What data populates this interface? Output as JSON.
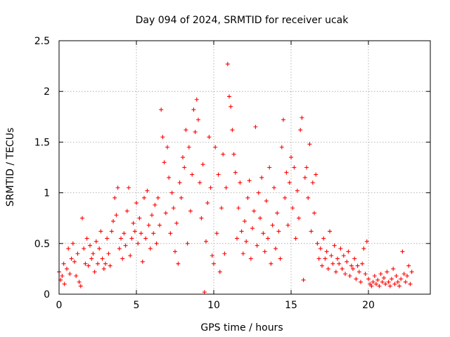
{
  "chart_data": {
    "type": "scatter",
    "title": "Day 094 of 2024, SRMTID for receiver ucak",
    "xlabel": "GPS time / hours",
    "ylabel": "SRMTID / TECUs",
    "xlim": [
      0,
      24
    ],
    "ylim": [
      0,
      2.5
    ],
    "xticks": [
      0,
      5,
      10,
      15,
      20
    ],
    "xtick_labels": [
      "0",
      "5",
      "10",
      "15",
      "20"
    ],
    "yticks": [
      0,
      0.5,
      1,
      1.5,
      2,
      2.5
    ],
    "ytick_labels": [
      "0",
      "0.5",
      "1",
      "1.5",
      "2",
      "2.5"
    ],
    "grid": true,
    "marker": "+",
    "series": [
      {
        "name": "SRMTID",
        "color": "#ff0000",
        "points": [
          [
            0.0,
            0.22
          ],
          [
            0.1,
            0.14
          ],
          [
            0.2,
            0.18
          ],
          [
            0.3,
            0.3
          ],
          [
            0.35,
            0.1
          ],
          [
            0.5,
            0.25
          ],
          [
            0.6,
            0.45
          ],
          [
            0.7,
            0.2
          ],
          [
            0.8,
            0.35
          ],
          [
            0.9,
            0.5
          ],
          [
            1.0,
            0.32
          ],
          [
            1.1,
            0.18
          ],
          [
            1.2,
            0.4
          ],
          [
            1.3,
            0.12
          ],
          [
            1.4,
            0.08
          ],
          [
            1.5,
            0.75
          ],
          [
            1.6,
            0.45
          ],
          [
            1.7,
            0.3
          ],
          [
            1.8,
            0.55
          ],
          [
            1.9,
            0.28
          ],
          [
            2.0,
            0.48
          ],
          [
            2.1,
            0.35
          ],
          [
            2.2,
            0.4
          ],
          [
            2.3,
            0.22
          ],
          [
            2.4,
            0.52
          ],
          [
            2.5,
            0.3
          ],
          [
            2.6,
            0.45
          ],
          [
            2.7,
            0.62
          ],
          [
            2.8,
            0.35
          ],
          [
            2.9,
            0.25
          ],
          [
            3.0,
            0.3
          ],
          [
            3.1,
            0.55
          ],
          [
            3.2,
            0.4
          ],
          [
            3.3,
            0.28
          ],
          [
            3.4,
            0.62
          ],
          [
            3.5,
            0.72
          ],
          [
            3.6,
            0.95
          ],
          [
            3.7,
            0.78
          ],
          [
            3.8,
            1.05
          ],
          [
            3.9,
            0.45
          ],
          [
            4.0,
            0.55
          ],
          [
            4.1,
            0.35
          ],
          [
            4.2,
            0.6
          ],
          [
            4.3,
            0.48
          ],
          [
            4.4,
            0.82
          ],
          [
            4.5,
            1.05
          ],
          [
            4.6,
            0.38
          ],
          [
            4.7,
            0.55
          ],
          [
            4.8,
            0.7
          ],
          [
            4.9,
            0.62
          ],
          [
            5.0,
            0.9
          ],
          [
            5.1,
            0.5
          ],
          [
            5.2,
            0.75
          ],
          [
            5.3,
            0.6
          ],
          [
            5.4,
            0.32
          ],
          [
            5.5,
            0.95
          ],
          [
            5.6,
            0.55
          ],
          [
            5.7,
            1.02
          ],
          [
            5.8,
            0.68
          ],
          [
            5.9,
            0.45
          ],
          [
            6.0,
            0.78
          ],
          [
            6.1,
            0.6
          ],
          [
            6.2,
            0.88
          ],
          [
            6.3,
            0.5
          ],
          [
            6.4,
            0.95
          ],
          [
            6.5,
            0.68
          ],
          [
            6.6,
            1.82
          ],
          [
            6.7,
            1.55
          ],
          [
            6.8,
            1.3
          ],
          [
            6.9,
            0.8
          ],
          [
            7.0,
            1.45
          ],
          [
            7.1,
            1.15
          ],
          [
            7.2,
            0.6
          ],
          [
            7.3,
            1.0
          ],
          [
            7.4,
            0.85
          ],
          [
            7.5,
            0.42
          ],
          [
            7.6,
            0.7
          ],
          [
            7.7,
            0.3
          ],
          [
            7.8,
            1.1
          ],
          [
            7.9,
            0.95
          ],
          [
            8.0,
            1.35
          ],
          [
            8.1,
            1.25
          ],
          [
            8.2,
            1.62
          ],
          [
            8.3,
            0.5
          ],
          [
            8.4,
            1.45
          ],
          [
            8.5,
            0.82
          ],
          [
            8.6,
            1.18
          ],
          [
            8.7,
            1.82
          ],
          [
            8.8,
            1.6
          ],
          [
            8.9,
            1.92
          ],
          [
            9.0,
            1.72
          ],
          [
            9.1,
            1.1
          ],
          [
            9.2,
            0.75
          ],
          [
            9.3,
            1.28
          ],
          [
            9.4,
            0.02
          ],
          [
            9.5,
            0.52
          ],
          [
            9.6,
            0.9
          ],
          [
            9.7,
            1.55
          ],
          [
            9.8,
            1.05
          ],
          [
            9.9,
            0.38
          ],
          [
            10.0,
            0.3
          ],
          [
            10.1,
            1.45
          ],
          [
            10.2,
            0.6
          ],
          [
            10.3,
            1.18
          ],
          [
            10.4,
            0.22
          ],
          [
            10.5,
            0.85
          ],
          [
            10.6,
            1.38
          ],
          [
            10.7,
            0.4
          ],
          [
            10.8,
            1.05
          ],
          [
            10.9,
            2.27
          ],
          [
            11.0,
            1.95
          ],
          [
            11.1,
            1.85
          ],
          [
            11.2,
            1.62
          ],
          [
            11.3,
            1.38
          ],
          [
            11.4,
            1.2
          ],
          [
            11.5,
            0.55
          ],
          [
            11.6,
            0.85
          ],
          [
            11.7,
            1.1
          ],
          [
            11.8,
            0.62
          ],
          [
            11.9,
            0.4
          ],
          [
            12.0,
            0.72
          ],
          [
            12.1,
            0.52
          ],
          [
            12.2,
            0.95
          ],
          [
            12.3,
            1.12
          ],
          [
            12.4,
            0.35
          ],
          [
            12.5,
            0.65
          ],
          [
            12.6,
            0.82
          ],
          [
            12.7,
            1.65
          ],
          [
            12.8,
            0.48
          ],
          [
            12.9,
            1.0
          ],
          [
            13.0,
            0.75
          ],
          [
            13.1,
            1.15
          ],
          [
            13.2,
            0.6
          ],
          [
            13.3,
            0.42
          ],
          [
            13.4,
            0.92
          ],
          [
            13.5,
            0.55
          ],
          [
            13.6,
            1.25
          ],
          [
            13.7,
            0.3
          ],
          [
            13.8,
            0.68
          ],
          [
            13.9,
            1.05
          ],
          [
            14.0,
            0.45
          ],
          [
            14.1,
            0.8
          ],
          [
            14.2,
            0.62
          ],
          [
            14.3,
            0.35
          ],
          [
            14.4,
            1.45
          ],
          [
            14.5,
            1.72
          ],
          [
            14.6,
            0.95
          ],
          [
            14.7,
            1.2
          ],
          [
            14.8,
            0.68
          ],
          [
            14.9,
            1.1
          ],
          [
            15.0,
            1.35
          ],
          [
            15.1,
            0.85
          ],
          [
            15.2,
            1.25
          ],
          [
            15.3,
            0.55
          ],
          [
            15.4,
            1.02
          ],
          [
            15.5,
            0.75
          ],
          [
            15.6,
            1.62
          ],
          [
            15.7,
            1.74
          ],
          [
            15.8,
            0.14
          ],
          [
            15.9,
            1.15
          ],
          [
            16.0,
            1.25
          ],
          [
            16.1,
            0.95
          ],
          [
            16.2,
            1.48
          ],
          [
            16.3,
            0.62
          ],
          [
            16.4,
            1.1
          ],
          [
            16.5,
            0.8
          ],
          [
            16.6,
            1.18
          ],
          [
            16.7,
            0.5
          ],
          [
            16.8,
            0.35
          ],
          [
            16.9,
            0.45
          ],
          [
            17.0,
            0.28
          ],
          [
            17.1,
            0.55
          ],
          [
            17.2,
            0.35
          ],
          [
            17.3,
            0.42
          ],
          [
            17.4,
            0.25
          ],
          [
            17.5,
            0.62
          ],
          [
            17.6,
            0.38
          ],
          [
            17.7,
            0.3
          ],
          [
            17.8,
            0.48
          ],
          [
            17.9,
            0.22
          ],
          [
            18.0,
            0.35
          ],
          [
            18.1,
            0.3
          ],
          [
            18.2,
            0.45
          ],
          [
            18.3,
            0.25
          ],
          [
            18.4,
            0.38
          ],
          [
            18.5,
            0.2
          ],
          [
            18.6,
            0.32
          ],
          [
            18.7,
            0.42
          ],
          [
            18.8,
            0.18
          ],
          [
            18.9,
            0.28
          ],
          [
            19.0,
            0.25
          ],
          [
            19.1,
            0.35
          ],
          [
            19.2,
            0.15
          ],
          [
            19.3,
            0.28
          ],
          [
            19.4,
            0.22
          ],
          [
            19.5,
            0.12
          ],
          [
            19.6,
            0.3
          ],
          [
            19.7,
            0.45
          ],
          [
            19.8,
            0.2
          ],
          [
            19.9,
            0.52
          ],
          [
            20.0,
            0.15
          ],
          [
            20.1,
            0.1
          ],
          [
            20.2,
            0.08
          ],
          [
            20.3,
            0.12
          ],
          [
            20.4,
            0.18
          ],
          [
            20.5,
            0.1
          ],
          [
            20.6,
            0.14
          ],
          [
            20.7,
            0.08
          ],
          [
            20.8,
            0.2
          ],
          [
            20.9,
            0.12
          ],
          [
            21.0,
            0.16
          ],
          [
            21.1,
            0.1
          ],
          [
            21.2,
            0.22
          ],
          [
            21.3,
            0.12
          ],
          [
            21.4,
            0.08
          ],
          [
            21.5,
            0.15
          ],
          [
            21.6,
            0.25
          ],
          [
            21.7,
            0.1
          ],
          [
            21.8,
            0.18
          ],
          [
            21.9,
            0.12
          ],
          [
            22.0,
            0.08
          ],
          [
            22.1,
            0.15
          ],
          [
            22.2,
            0.42
          ],
          [
            22.3,
            0.2
          ],
          [
            22.4,
            0.12
          ],
          [
            22.5,
            0.18
          ],
          [
            22.6,
            0.28
          ],
          [
            22.7,
            0.1
          ],
          [
            22.8,
            0.22
          ]
        ]
      }
    ]
  }
}
